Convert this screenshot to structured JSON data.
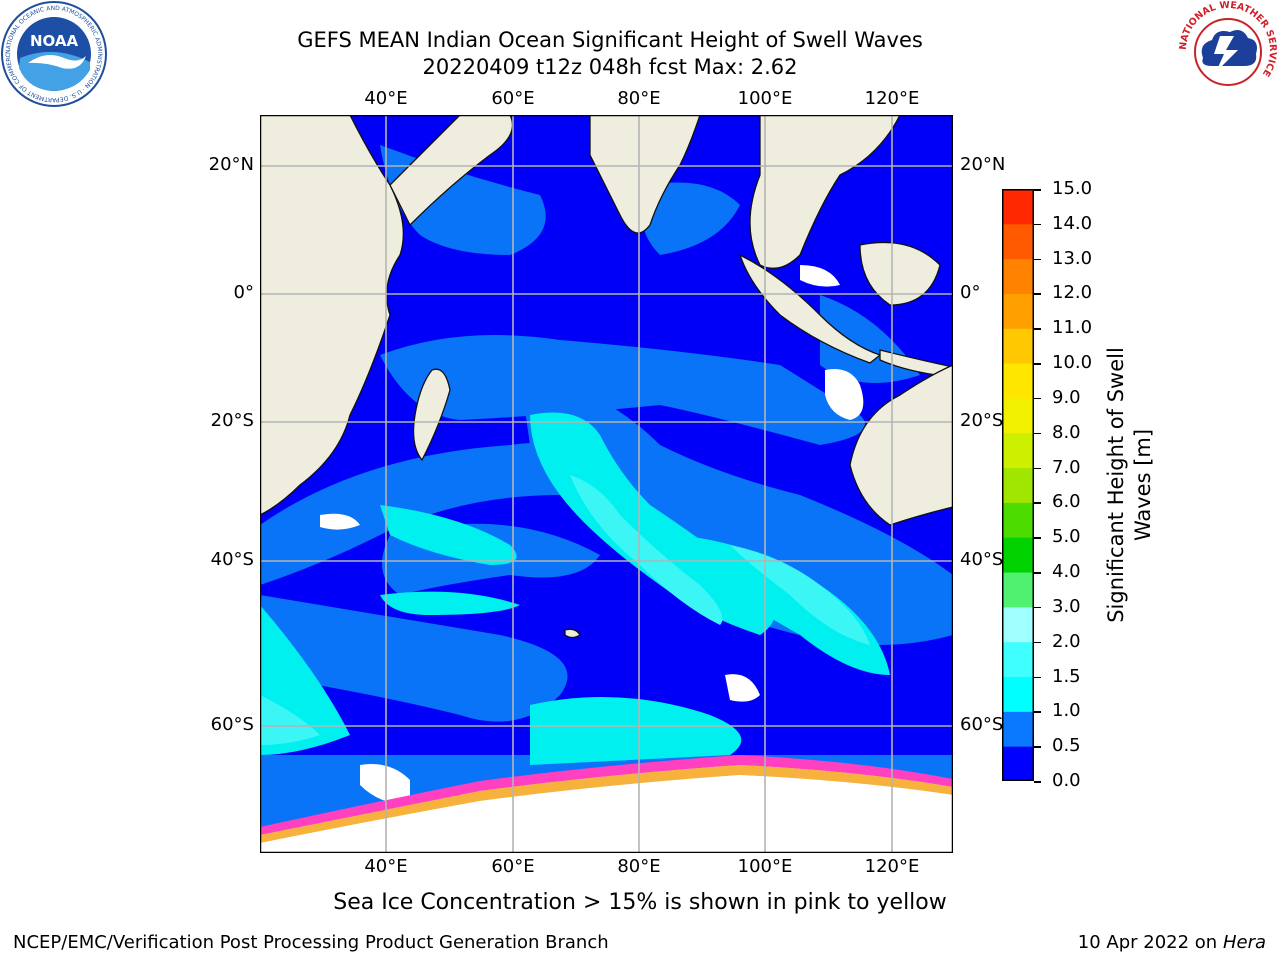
{
  "title_line1": "GEFS MEAN Indian Ocean Significant Height of Swell Waves",
  "title_line2": "20220409 t12z 048h fcst   Max: 2.62",
  "map": {
    "lon_ticks": [
      "40°E",
      "60°E",
      "80°E",
      "100°E",
      "120°E"
    ],
    "lat_ticks": [
      "20°N",
      "0°",
      "20°S",
      "40°S",
      "60°S"
    ],
    "extent": {
      "lon": [
        20,
        130
      ],
      "lat": [
        -75,
        28
      ]
    },
    "colors": {
      "land": "#efedde",
      "ocean_low": "#0000f8",
      "band_1": "#0a78f8",
      "band_2": "#00f0f0",
      "band_3": "#3cf6f6",
      "ice_white": "#ffffff",
      "ice_pink": "#ff40c0",
      "ice_orange": "#f6b23c",
      "grid": "#b4b4b4"
    }
  },
  "colorbar": {
    "label_line1": "Significant Height of Swell",
    "label_line2": "Waves [m]",
    "ticks": [
      "15.0",
      "14.0",
      "13.0",
      "12.0",
      "11.0",
      "10.0",
      "9.0",
      "8.0",
      "7.0",
      "6.0",
      "5.0",
      "4.0",
      "3.0",
      "2.0",
      "1.5",
      "1.0",
      "0.5",
      "0.0"
    ],
    "colors_bottom_to_top": [
      "#0000ff",
      "#0a78ff",
      "#00ffff",
      "#40ffff",
      "#a0ffff",
      "#50f070",
      "#00d200",
      "#4cdc00",
      "#a0e600",
      "#ccf000",
      "#f0f000",
      "#ffe600",
      "#ffc800",
      "#ffa000",
      "#ff8200",
      "#ff5a00",
      "#ff2800",
      "#ff0000"
    ]
  },
  "caption": "Sea Ice Concentration > 15% is shown in pink to yellow",
  "footer_left": "NCEP/EMC/Verification Post Processing Product Generation Branch",
  "footer_date": "10 Apr 2022 on ",
  "footer_host": "Hera",
  "logos": {
    "noaa_text": "NOAA",
    "noaa_ring": "NATIONAL OCEANIC AND ATMOSPHERIC ADMINISTRATION · U.S. DEPARTMENT OF COMMERCE",
    "nws_ring": "NATIONAL WEATHER SERVICE"
  }
}
